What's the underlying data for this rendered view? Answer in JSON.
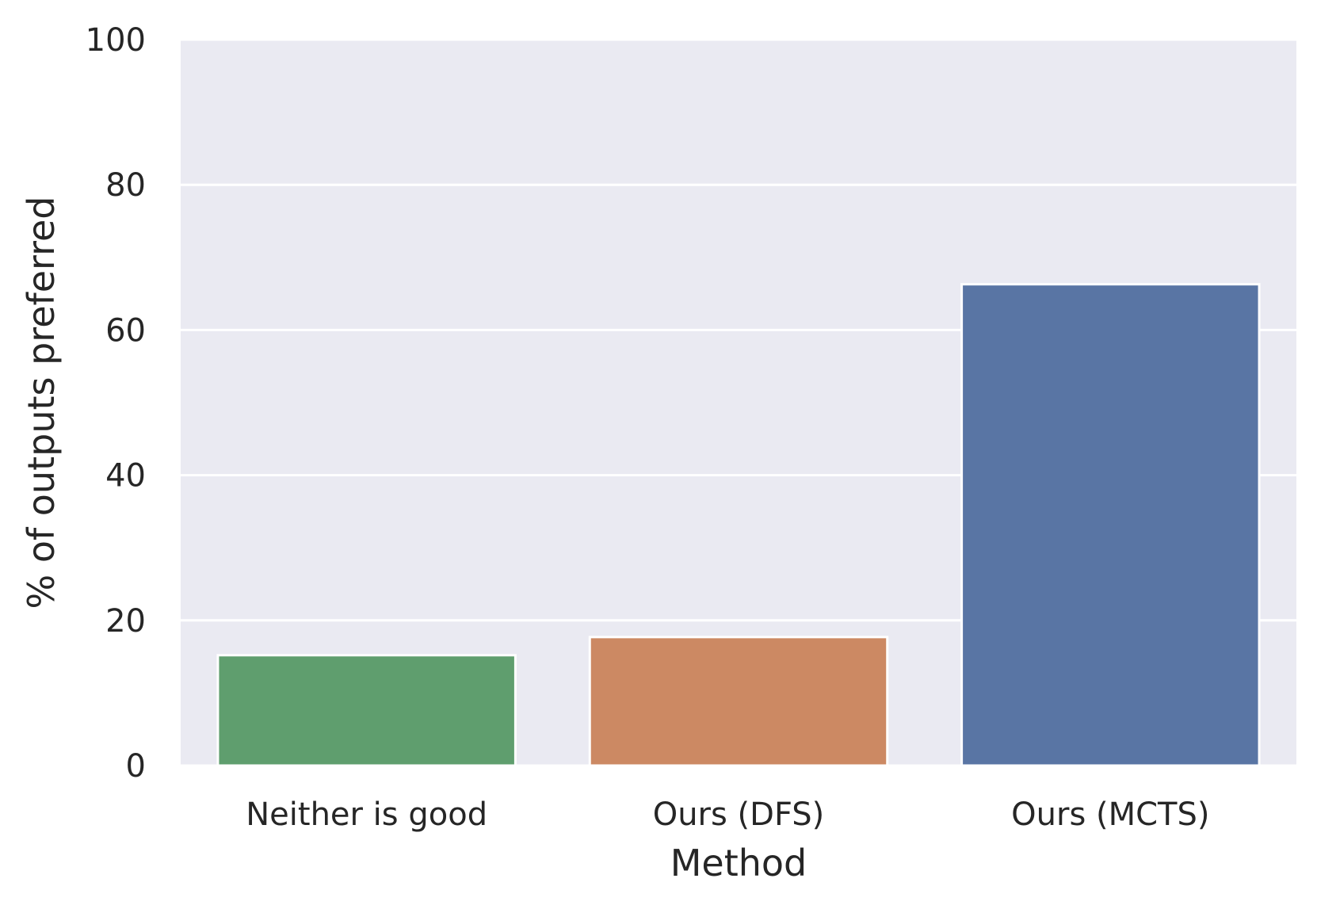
{
  "chart_data": {
    "type": "bar",
    "title": "",
    "xlabel": "Method",
    "ylabel": "% of outputs preferred",
    "categories": [
      "Neither is good",
      "Ours (DFS)",
      "Ours (MCTS)"
    ],
    "values": [
      15.2,
      17.7,
      66.3
    ],
    "colors": [
      "#5f9e6e",
      "#cc8963",
      "#5975a4"
    ],
    "ylim": [
      0,
      100
    ],
    "yticks": [
      0,
      20,
      40,
      60,
      80,
      100
    ],
    "grid": true,
    "background": "#eaeaf2",
    "grid_color": "#ffffff"
  }
}
